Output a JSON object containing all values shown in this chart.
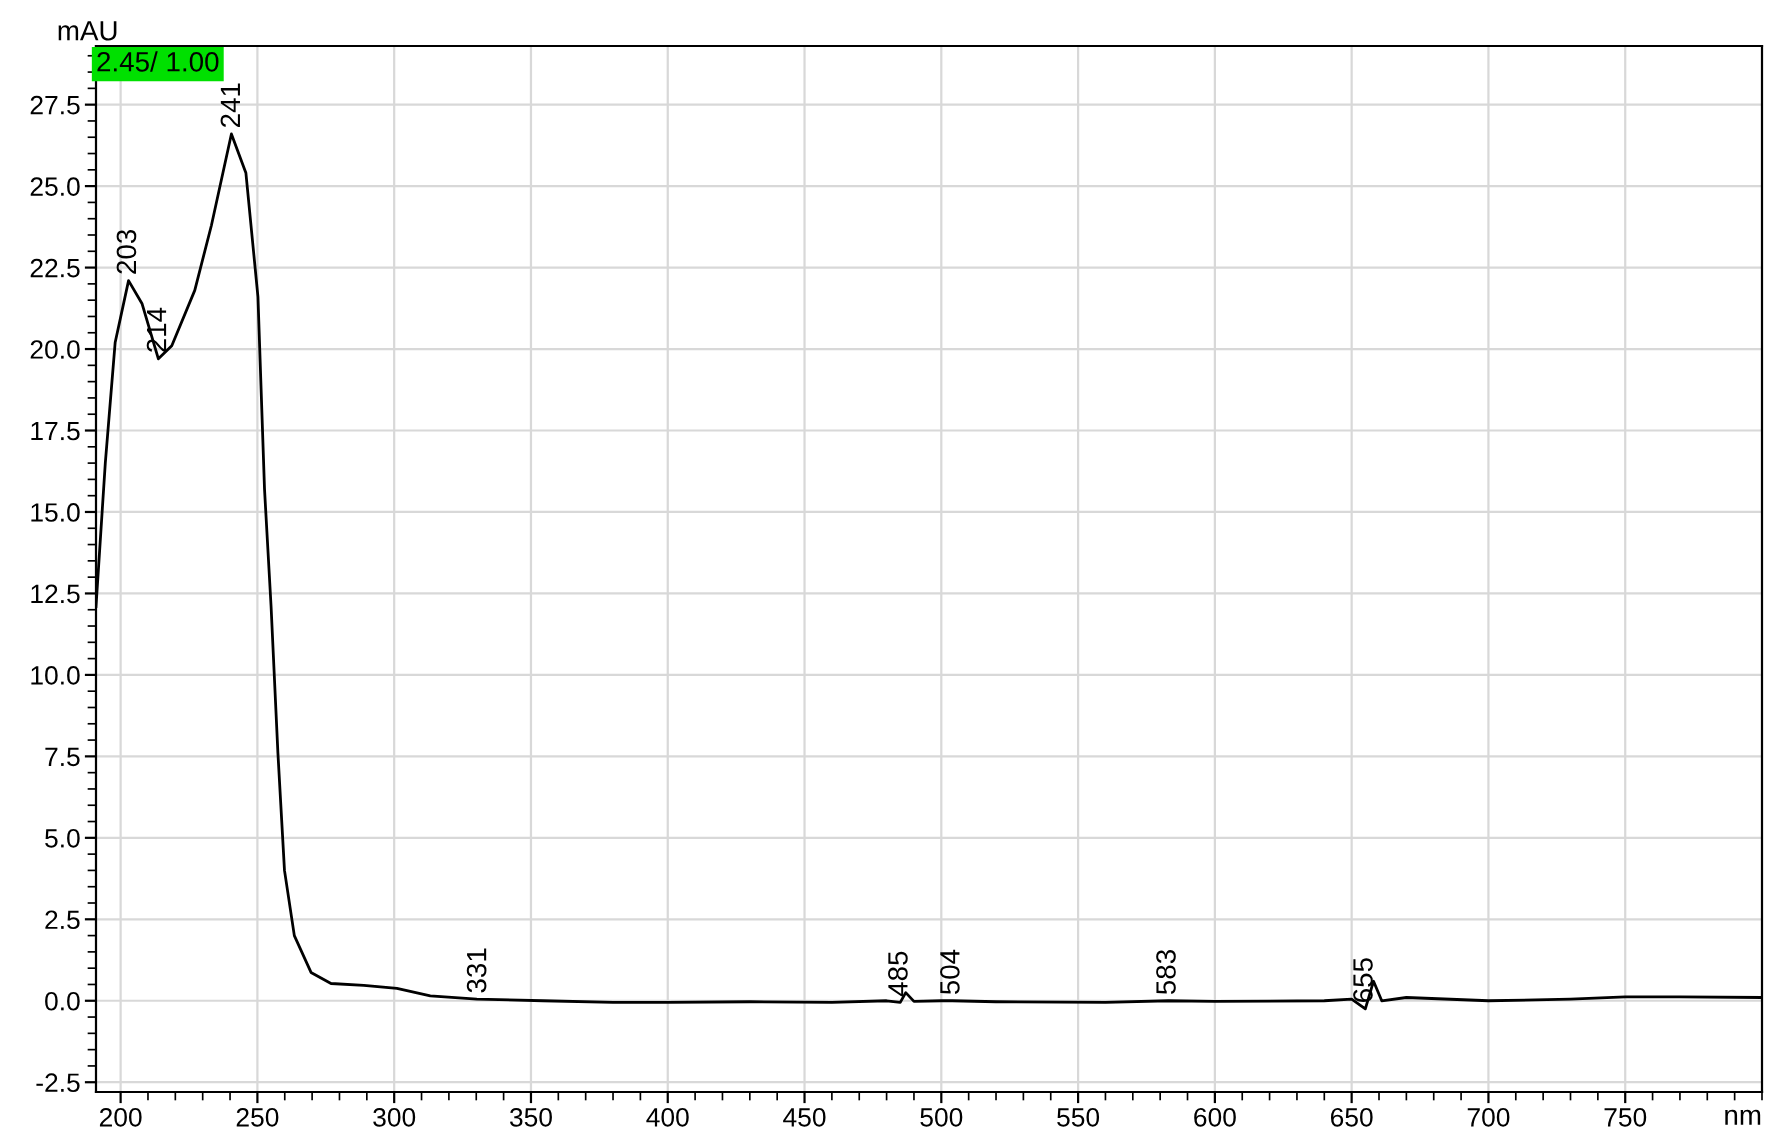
{
  "chart_data": {
    "type": "line",
    "xlabel": "nm",
    "ylabel": "mAU",
    "annotations": [
      "2.45/ 1.00",
      {
        "text": "203",
        "x": 203,
        "y": 22.1
      },
      {
        "text": "214",
        "x": 214,
        "y": 19.7
      },
      {
        "text": "241",
        "x": 241,
        "y": 26.6
      },
      {
        "text": "331",
        "x": 331,
        "y": 0.05
      },
      {
        "text": "485",
        "x": 485,
        "y": -0.05
      },
      {
        "text": "504",
        "x": 504,
        "y": 0.0
      },
      {
        "text": "583",
        "x": 583,
        "y": 0.0
      },
      {
        "text": "655",
        "x": 655,
        "y": -0.25
      }
    ],
    "series": [
      {
        "color": "#000000",
        "x": [
          191,
          194.4,
          198,
          202.9,
          207.8,
          213.8,
          218.7,
          227.1,
          233.2,
          240.5,
          245.8,
          250.2,
          252.6,
          255,
          257.5,
          259.9,
          263.5,
          269.6,
          276.9,
          288.9,
          301,
          313.2,
          330.2,
          354.4,
          380,
          400,
          430,
          460,
          480,
          485,
          487,
          490,
          500,
          504,
          520,
          560,
          583,
          600,
          640,
          650,
          655,
          658,
          661,
          670,
          700,
          730,
          750,
          770,
          800
        ],
        "values": [
          12.1,
          16.5,
          20.2,
          22.1,
          21.4,
          19.7,
          20.1,
          21.8,
          23.8,
          26.6,
          25.4,
          21.6,
          15.7,
          12.1,
          7.6,
          4.0,
          2.0,
          0.87,
          0.53,
          0.47,
          0.38,
          0.15,
          0.05,
          0.0,
          -0.05,
          -0.05,
          -0.03,
          -0.05,
          0.0,
          -0.05,
          0.25,
          -0.02,
          0.0,
          0.0,
          -0.03,
          -0.05,
          0.0,
          -0.02,
          0.0,
          0.05,
          -0.25,
          0.6,
          0.0,
          0.1,
          0.0,
          0.05,
          0.12,
          0.12,
          0.1
        ]
      }
    ],
    "xlim": [
      191,
      800
    ],
    "ylim": [
      -2.8,
      29.3
    ],
    "xticks": [
      200,
      {
        "value": 210,
        "label": null
      },
      {
        "value": 220,
        "label": null
      },
      {
        "value": 230,
        "label": null
      },
      {
        "value": 240,
        "label": null
      },
      250,
      {
        "value": 260,
        "label": null
      },
      {
        "value": 270,
        "label": null
      },
      {
        "value": 280,
        "label": null
      },
      {
        "value": 290,
        "label": null
      },
      300,
      {
        "value": 310,
        "label": null
      },
      {
        "value": 320,
        "label": null
      },
      {
        "value": 330,
        "label": null
      },
      {
        "value": 340,
        "label": null
      },
      350,
      {
        "value": 360,
        "label": null
      },
      {
        "value": 370,
        "label": null
      },
      {
        "value": 380,
        "label": null
      },
      {
        "value": 390,
        "label": null
      },
      400,
      {
        "value": 410,
        "label": null
      },
      {
        "value": 420,
        "label": null
      },
      {
        "value": 430,
        "label": null
      },
      {
        "value": 440,
        "label": null
      },
      450,
      {
        "value": 460,
        "label": null
      },
      {
        "value": 470,
        "label": null
      },
      {
        "value": 480,
        "label": null
      },
      {
        "value": 490,
        "label": null
      },
      500,
      {
        "value": 510,
        "label": null
      },
      {
        "value": 520,
        "label": null
      },
      {
        "value": 530,
        "label": null
      },
      {
        "value": 540,
        "label": null
      },
      550,
      {
        "value": 560,
        "label": null
      },
      {
        "value": 570,
        "label": null
      },
      {
        "value": 580,
        "label": null
      },
      {
        "value": 590,
        "label": null
      },
      600,
      {
        "value": 610,
        "label": null
      },
      {
        "value": 620,
        "label": null
      },
      {
        "value": 630,
        "label": null
      },
      {
        "value": 640,
        "label": null
      },
      650,
      {
        "value": 660,
        "label": null
      },
      {
        "value": 670,
        "label": null
      },
      {
        "value": 680,
        "label": null
      },
      {
        "value": 690,
        "label": null
      },
      700,
      {
        "value": 710,
        "label": null
      },
      {
        "value": 720,
        "label": null
      },
      {
        "value": 730,
        "label": null
      },
      {
        "value": 740,
        "label": null
      },
      750,
      {
        "value": 760,
        "label": null
      },
      {
        "value": 770,
        "label": null
      },
      {
        "value": 780,
        "label": null
      },
      {
        "value": 790,
        "label": null
      },
      {
        "value": 800,
        "label": null
      }
    ],
    "yticks": [
      {
        "value": -2.5,
        "label": "-2.5"
      },
      {
        "value": -2,
        "label": null
      },
      {
        "value": -1.5,
        "label": null
      },
      {
        "value": -1,
        "label": null
      },
      {
        "value": -0.5,
        "label": null
      },
      {
        "value": 0,
        "label": "0.0"
      },
      {
        "value": 0.5,
        "label": null
      },
      {
        "value": 1,
        "label": null
      },
      {
        "value": 1.5,
        "label": null
      },
      {
        "value": 2,
        "label": null
      },
      {
        "value": 2.5,
        "label": "2.5"
      },
      {
        "value": 3,
        "label": null
      },
      {
        "value": 3.5,
        "label": null
      },
      {
        "value": 4,
        "label": null
      },
      {
        "value": 4.5,
        "label": null
      },
      {
        "value": 5,
        "label": "5.0"
      },
      {
        "value": 5.5,
        "label": null
      },
      {
        "value": 6,
        "label": null
      },
      {
        "value": 6.5,
        "label": null
      },
      {
        "value": 7,
        "label": null
      },
      {
        "value": 7.5,
        "label": "7.5"
      },
      {
        "value": 8,
        "label": null
      },
      {
        "value": 8.5,
        "label": null
      },
      {
        "value": 9,
        "label": null
      },
      {
        "value": 9.5,
        "label": null
      },
      {
        "value": 10,
        "label": "10.0"
      },
      {
        "value": 10.5,
        "label": null
      },
      {
        "value": 11,
        "label": null
      },
      {
        "value": 11.5,
        "label": null
      },
      {
        "value": 12,
        "label": null
      },
      {
        "value": 12.5,
        "label": "12.5"
      },
      {
        "value": 13,
        "label": null
      },
      {
        "value": 13.5,
        "label": null
      },
      {
        "value": 14,
        "label": null
      },
      {
        "value": 14.5,
        "label": null
      },
      {
        "value": 15,
        "label": "15.0"
      },
      {
        "value": 15.5,
        "label": null
      },
      {
        "value": 16,
        "label": null
      },
      {
        "value": 16.5,
        "label": null
      },
      {
        "value": 17,
        "label": null
      },
      {
        "value": 17.5,
        "label": "17.5"
      },
      {
        "value": 18,
        "label": null
      },
      {
        "value": 18.5,
        "label": null
      },
      {
        "value": 19,
        "label": null
      },
      {
        "value": 19.5,
        "label": null
      },
      {
        "value": 20,
        "label": "20.0"
      },
      {
        "value": 20.5,
        "label": null
      },
      {
        "value": 21,
        "label": null
      },
      {
        "value": 21.5,
        "label": null
      },
      {
        "value": 22,
        "label": null
      },
      {
        "value": 22.5,
        "label": "22.5"
      },
      {
        "value": 23,
        "label": null
      },
      {
        "value": 23.5,
        "label": null
      },
      {
        "value": 24,
        "label": null
      },
      {
        "value": 24.5,
        "label": null
      },
      {
        "value": 25,
        "label": "25.0"
      },
      {
        "value": 25.5,
        "label": null
      },
      {
        "value": 26,
        "label": null
      },
      {
        "value": 26.5,
        "label": null
      },
      {
        "value": 27,
        "label": null
      },
      {
        "value": 27.5,
        "label": "27.5"
      },
      {
        "value": 28,
        "label": null
      },
      {
        "value": 28.5,
        "label": null
      },
      {
        "value": 29,
        "label": null
      }
    ],
    "grid": true,
    "legend": false,
    "marker": "none",
    "line_style": "solid"
  }
}
